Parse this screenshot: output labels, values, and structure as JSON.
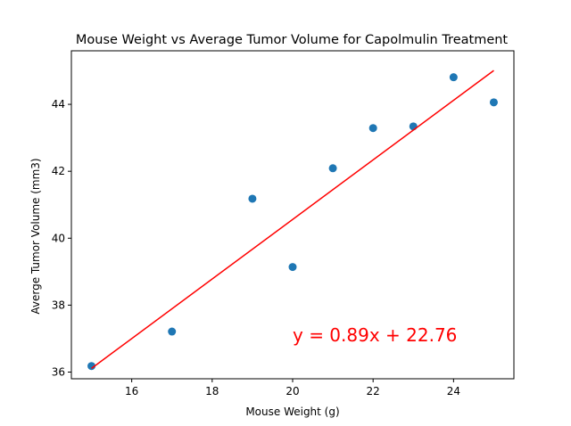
{
  "chart_data": {
    "type": "scatter",
    "title": "Mouse Weight vs Average Tumor Volume for Capolmulin Treatment",
    "xlabel": "Mouse Weight (g)",
    "ylabel": "Averge Tumor Volume (mm3)",
    "xlim": [
      14.5,
      25.5
    ],
    "ylim": [
      35.8,
      45.6
    ],
    "xticks": [
      16,
      18,
      20,
      22,
      24
    ],
    "yticks": [
      36,
      38,
      40,
      42,
      44
    ],
    "grid": false,
    "series": [
      {
        "kind": "scatter",
        "color": "#1f77b4",
        "points": [
          {
            "x": 15,
            "y": 36.18
          },
          {
            "x": 17,
            "y": 37.21
          },
          {
            "x": 19,
            "y": 41.18
          },
          {
            "x": 20,
            "y": 39.14
          },
          {
            "x": 21,
            "y": 42.09
          },
          {
            "x": 22,
            "y": 43.29
          },
          {
            "x": 23,
            "y": 43.34
          },
          {
            "x": 24,
            "y": 44.81
          },
          {
            "x": 25,
            "y": 44.06
          }
        ]
      },
      {
        "kind": "line",
        "color": "#ff0000",
        "slope": 0.89,
        "intercept": 22.76,
        "x_range": [
          15,
          25
        ]
      }
    ],
    "annotation": {
      "text": "y = 0.89x + 22.76",
      "x": 20,
      "y": 37.1,
      "color": "#ff0000"
    }
  }
}
